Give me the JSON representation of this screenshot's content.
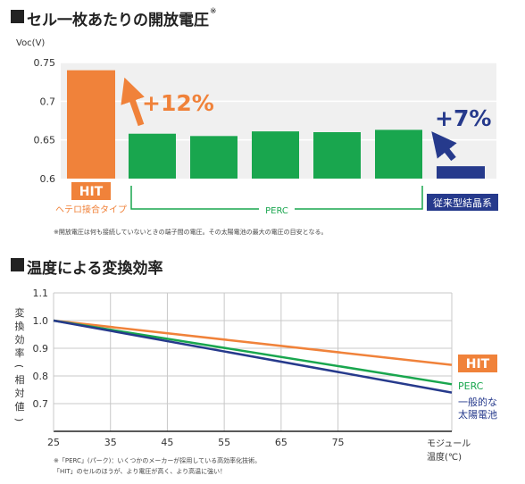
{
  "section1": {
    "title": "セル一枚あたりの開放電圧",
    "title_mark": "※",
    "footnote": "※開放電圧は何も接続していないときの端子間の電圧。その太陽電池の最大の電圧の目安となる。"
  },
  "section2": {
    "title": "温度による変換効率",
    "footnote1": "※「PERC」(パーク)：いくつかのメーカーが採用している高効率化技術。",
    "footnote2": "「HIT」のセルのほうが、より電圧が高く、より高温に強い！"
  },
  "colors": {
    "hit": "#f0823a",
    "perc": "#19a64e",
    "conventional": "#263a8c",
    "grid": "#c8c8c8",
    "plot_bg": "#f0f0f0"
  },
  "chart_data": [
    {
      "type": "bar",
      "ylabel": "Voc(V)",
      "ylim": [
        0.6,
        0.75
      ],
      "yticks": [
        "0.6",
        "0.65",
        "0.7",
        "0.75"
      ],
      "series": [
        {
          "group": "HIT",
          "values": [
            0.74
          ]
        },
        {
          "group": "PERC",
          "values": [
            0.658,
            0.655,
            0.661,
            0.66,
            0.663
          ]
        },
        {
          "group": "conventional",
          "values": [
            0.616
          ]
        }
      ],
      "hit_logo": "HIT",
      "hit_label": "ヘテロ接合タイプ",
      "perc_label": "PERC",
      "conventional_label": "従来型結晶系",
      "annotations": [
        "+12%",
        "+7%"
      ]
    },
    {
      "type": "line",
      "ylabel": "変換効率(相対値)",
      "xlabel": "モジュール温度(℃)",
      "x": [
        25,
        95
      ],
      "xticks": [
        "25",
        "35",
        "45",
        "55",
        "65",
        "75"
      ],
      "xlim": [
        25,
        95
      ],
      "ylim": [
        0.6,
        1.1
      ],
      "yticks": [
        "0.7",
        "0.8",
        "0.9",
        "1.0",
        "1.1"
      ],
      "grid": true,
      "series": [
        {
          "name": "HIT",
          "values": [
            1.0,
            0.84
          ]
        },
        {
          "name": "PERC",
          "values": [
            1.0,
            0.77
          ]
        },
        {
          "name": "一般的な太陽電池",
          "values": [
            1.0,
            0.74
          ]
        }
      ]
    }
  ]
}
